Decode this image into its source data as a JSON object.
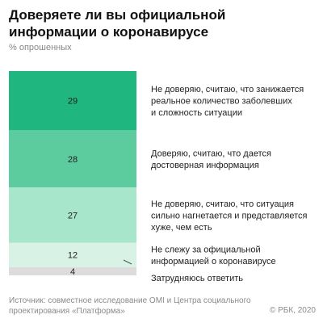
{
  "title": "Доверяете ли вы официальной информации о коронавирусе",
  "subtitle": "% опрошенных",
  "chart_data": {
    "type": "bar",
    "stacked": true,
    "orientation": "vertical",
    "unit": "%",
    "categories": [
      "Не доверяю, считаю, что занижается реальное количество заболевших и сложность ситуации",
      "Доверяю, считаю, что дается достоверная информация",
      "Не доверяю, считаю, что ситуация сильно нагнетается и представляется хуже, чем есть",
      "Не слежу за официальной информацией о коронавирусе",
      "Затрудняюсь ответить"
    ],
    "values": [
      29,
      28,
      27,
      12,
      4
    ],
    "colors": [
      "#1fb77f",
      "#5ccc9f",
      "#a7e6cb",
      "#d8f2e6",
      "#dcdcdc"
    ],
    "label_lines": [
      [
        "Не доверяю, считаю, что занижается",
        "реальное количество заболевших",
        "и сложность ситуации"
      ],
      [
        "Доверяю, считаю, что дается",
        "достоверная информация"
      ],
      [
        "Не доверяю, считаю, что ситуация",
        "сильно нагнетается и представляется",
        "хуже, чем есть"
      ],
      [
        "Не слежу за официальной",
        "информацией о коронавирусе"
      ],
      [
        "Затрудняюсь ответить"
      ]
    ]
  },
  "footer": {
    "source": "Источник: совместное исследование OMI и Центра социального проектирования «Платформа»",
    "credit": "© РБК, 2020"
  }
}
